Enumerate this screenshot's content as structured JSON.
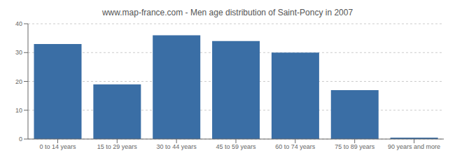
{
  "chart_data": {
    "type": "bar",
    "title": "www.map-france.com - Men age distribution of Saint-Poncy in 2007",
    "categories": [
      "0 to 14 years",
      "15 to 29 years",
      "30 to 44 years",
      "45 to 59 years",
      "60 to 74 years",
      "75 to 89 years",
      "90 years and more"
    ],
    "values": [
      33,
      19,
      36,
      34,
      30,
      17,
      0.5
    ],
    "color": "#3a6ea5",
    "ylim": [
      0,
      40
    ],
    "yticks": [
      0,
      10,
      20,
      30,
      40
    ],
    "grid": true
  }
}
